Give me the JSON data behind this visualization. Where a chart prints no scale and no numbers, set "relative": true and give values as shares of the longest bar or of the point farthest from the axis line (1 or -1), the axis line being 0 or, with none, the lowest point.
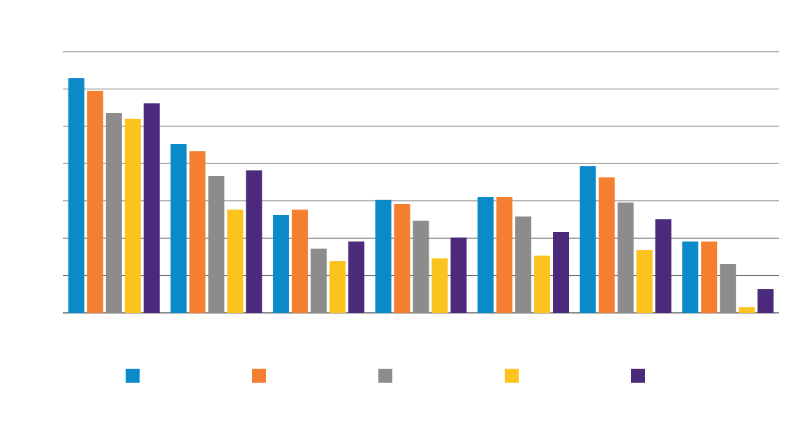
{
  "chart_data": {
    "type": "bar",
    "relative": true,
    "grid": "y",
    "categories": [
      null,
      null,
      null,
      null,
      null,
      null,
      null
    ],
    "series": [
      {
        "color": "#0a8ac8",
        "values": [
          1,
          0.72,
          0.417,
          0.482,
          0.494,
          0.625,
          0.304
        ]
      },
      {
        "color": "#f47f30",
        "values": [
          0.946,
          0.69,
          0.44,
          0.464,
          0.494,
          0.577,
          0.304
        ]
      },
      {
        "color": "#8c8c8c",
        "values": [
          0.851,
          0.583,
          0.274,
          0.393,
          0.411,
          0.47,
          0.208
        ]
      },
      {
        "color": "#fcc21d",
        "values": [
          0.827,
          0.44,
          0.22,
          0.232,
          0.244,
          0.268,
          0.024
        ]
      },
      {
        "color": "#4b2a7b",
        "values": [
          0.893,
          0.607,
          0.304,
          0.321,
          0.345,
          0.399,
          0.101
        ]
      }
    ]
  }
}
